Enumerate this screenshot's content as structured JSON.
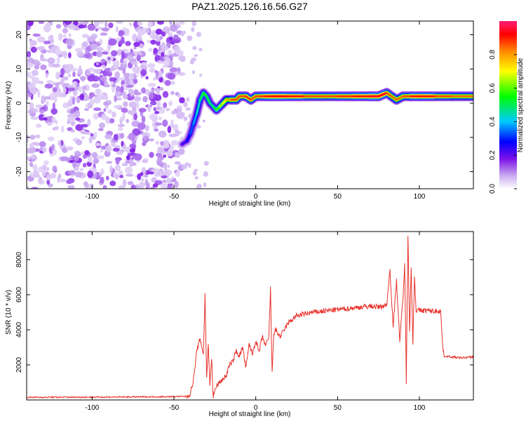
{
  "figure": {
    "title": "PAZ1.2025.126.16.56.G27"
  },
  "chart_data": [
    {
      "type": "heatmap",
      "xlabel": "Height of straight line (km)",
      "ylabel": "Frequency (Hz)",
      "xlim": [
        -140,
        133
      ],
      "ylim": [
        -25,
        24
      ],
      "xticks": [
        -100,
        -50,
        0,
        50,
        100
      ],
      "yticks": [
        -20,
        -10,
        0,
        10,
        20
      ],
      "grid": false,
      "colorbar": {
        "label": "Normalized spectral amplitude",
        "range": [
          0.0,
          1.0
        ],
        "ticks": [
          "0.0",
          "0.2",
          "0.4",
          "0.6",
          "0.8"
        ],
        "colors": [
          "#ffffff",
          "#c8a8f0",
          "#7a10e8",
          "#0000ff",
          "#00c8ff",
          "#00ff00",
          "#ffff00",
          "#ff8800",
          "#ff0000",
          "#ff1e78"
        ]
      },
      "noise_region": {
        "x_range": [
          -140,
          -45
        ],
        "freq_range": [
          -25,
          24
        ]
      },
      "ridge": {
        "x": [
          -45,
          -42,
          -40,
          -38,
          -36,
          -34,
          -32,
          -30,
          -28,
          -26,
          -24,
          -22,
          -20,
          -18,
          -15,
          -12,
          -10,
          -6,
          -3,
          0,
          3,
          6,
          10,
          15,
          20,
          30,
          40,
          50,
          60,
          70,
          75,
          80,
          83,
          86,
          90,
          95,
          100,
          110,
          120,
          133
        ],
        "freq": [
          -12,
          -11,
          -9,
          -6,
          -3,
          1,
          3,
          2,
          0,
          -1,
          -2,
          -1,
          0,
          1,
          1,
          1,
          2,
          2,
          1,
          2,
          2,
          2,
          2,
          2,
          2,
          2,
          2,
          2,
          2,
          2,
          2,
          3,
          2,
          1,
          2,
          2,
          2,
          2,
          2,
          2
        ],
        "amplitude": [
          0.25,
          0.3,
          0.35,
          0.4,
          0.45,
          0.5,
          0.55,
          0.55,
          0.5,
          0.5,
          0.55,
          0.6,
          0.65,
          0.7,
          0.8,
          0.85,
          0.8,
          0.85,
          0.85,
          0.8,
          0.85,
          0.85,
          0.9,
          0.9,
          0.9,
          0.85,
          0.8,
          0.85,
          0.85,
          0.9,
          0.95,
          0.85,
          0.8,
          0.8,
          0.8,
          0.85,
          0.9,
          0.85,
          0.8,
          0.8
        ]
      }
    },
    {
      "type": "line",
      "xlabel": "Height of straight line (km)",
      "ylabel": "SNR (10 * v/v)",
      "xlim": [
        -140,
        133
      ],
      "ylim": [
        0,
        9600
      ],
      "xticks": [
        -100,
        -50,
        0,
        50,
        100
      ],
      "yticks": [
        2000,
        4000,
        6000,
        8000
      ],
      "grid": false,
      "color": "#e8302a",
      "series": [
        {
          "x": [
            -140,
            -100,
            -60,
            -42,
            -40,
            -38,
            -36,
            -34,
            -32,
            -31,
            -30,
            -29,
            -28,
            -27,
            -26,
            -25,
            -24,
            -22,
            -20,
            -18,
            -16,
            -14,
            -12,
            -10,
            -8,
            -6,
            -4,
            -2,
            0,
            2,
            4,
            6,
            8,
            9,
            10,
            11,
            12,
            15,
            18,
            20,
            25,
            30,
            35,
            40,
            45,
            50,
            55,
            60,
            65,
            70,
            75,
            80,
            82,
            84,
            86,
            88,
            90,
            91,
            92,
            93,
            94,
            95,
            96,
            97,
            98,
            100,
            105,
            110,
            113,
            114,
            115,
            120,
            125,
            133
          ],
          "values": [
            150,
            160,
            180,
            200,
            350,
            1200,
            2800,
            3500,
            2600,
            6000,
            1200,
            3200,
            800,
            2400,
            200,
            500,
            800,
            1000,
            1200,
            1400,
            2000,
            2200,
            2800,
            2500,
            3000,
            1800,
            3200,
            2600,
            3400,
            2700,
            3600,
            3100,
            3500,
            6400,
            1500,
            3800,
            4000,
            3600,
            4100,
            4400,
            4800,
            4900,
            5000,
            5050,
            5100,
            5150,
            5200,
            5250,
            5300,
            5350,
            5300,
            5400,
            7400,
            4200,
            6800,
            3400,
            5800,
            7800,
            1000,
            9500,
            4000,
            7600,
            3200,
            7000,
            5100,
            5100,
            5100,
            5050,
            5100,
            3300,
            2500,
            2450,
            2400,
            2450
          ]
        }
      ]
    }
  ]
}
